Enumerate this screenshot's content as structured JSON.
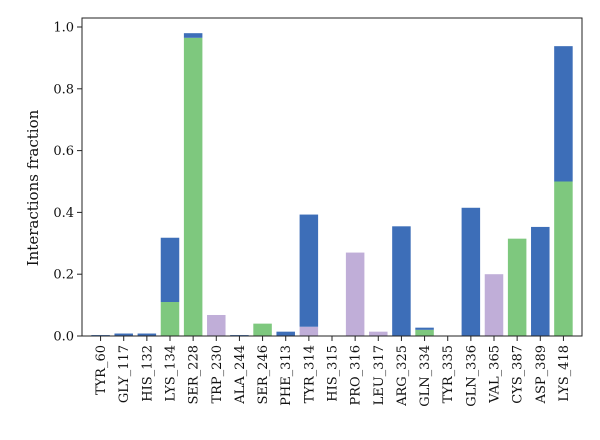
{
  "chart_data": {
    "type": "bar",
    "stacked": true,
    "title": "",
    "xlabel": "",
    "ylabel": "Interactions fraction",
    "ylim": [
      0,
      1.0
    ],
    "yticks": [
      "0.0",
      "0.2",
      "0.4",
      "0.6",
      "0.8",
      "1.0"
    ],
    "grid": false,
    "legend": false,
    "categories": [
      "TYR_60",
      "GLY_117",
      "HIS_132",
      "LYS_134",
      "SER_228",
      "TRP_230",
      "ALA_244",
      "SER_246",
      "PHE_313",
      "TYR_314",
      "HIS_315",
      "PRO_316",
      "LEU_317",
      "ARG_325",
      "GLN_334",
      "TYR_335",
      "GLN_336",
      "VAL_365",
      "CYS_387",
      "ASP_389",
      "LYS_418"
    ],
    "series": [
      {
        "color": "#7ec87e",
        "values": [
          0,
          0,
          0,
          0.11,
          0.965,
          0,
          0,
          0.04,
          0,
          0,
          0,
          0,
          0,
          0,
          0.02,
          0,
          0,
          0,
          0.315,
          0,
          0.5
        ]
      },
      {
        "color": "#c0aed8",
        "values": [
          0,
          0,
          0,
          0,
          0,
          0.068,
          0,
          0,
          0,
          0.03,
          0,
          0.27,
          0.014,
          0,
          0,
          0,
          0,
          0.2,
          0,
          0,
          0
        ]
      },
      {
        "color": "#3d6eb8",
        "values": [
          0.003,
          0.008,
          0.008,
          0.208,
          0.015,
          0,
          0.003,
          0,
          0.014,
          0.363,
          0,
          0,
          0,
          0.355,
          0.007,
          0,
          0.415,
          0,
          0,
          0.353,
          0.438
        ]
      }
    ]
  }
}
